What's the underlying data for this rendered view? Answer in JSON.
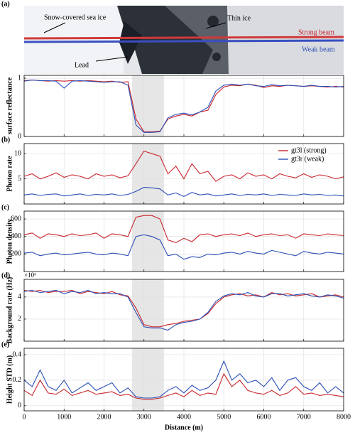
{
  "image": {
    "panel_label": "(a)",
    "labels": [
      "Snow-covered sea ice",
      "Thin ice",
      "Lead",
      "Strong beam",
      "Weak beam"
    ]
  },
  "chart_data": [
    {
      "type": "line",
      "panel_label": "",
      "y_label": "surface reflectance",
      "x": [
        0,
        200,
        400,
        600,
        800,
        1000,
        1200,
        1400,
        1600,
        1800,
        2000,
        2200,
        2400,
        2600,
        2800,
        3000,
        3200,
        3400,
        3600,
        3800,
        4000,
        4200,
        4400,
        4600,
        4800,
        5000,
        5200,
        5400,
        5600,
        5800,
        6000,
        6200,
        6400,
        6600,
        6800,
        7000,
        7200,
        7400,
        7600,
        7800,
        8000
      ],
      "series": [
        {
          "name": "gt3l (strong)",
          "color": "#c8252c",
          "values": [
            0.96,
            0.97,
            0.96,
            0.95,
            0.96,
            0.95,
            0.96,
            0.95,
            0.96,
            0.95,
            0.94,
            0.95,
            0.93,
            0.94,
            0.3,
            0.08,
            0.08,
            0.09,
            0.3,
            0.35,
            0.38,
            0.35,
            0.42,
            0.45,
            0.72,
            0.85,
            0.88,
            0.87,
            0.9,
            0.88,
            0.84,
            0.87,
            0.86,
            0.88,
            0.87,
            0.86,
            0.87,
            0.86,
            0.85,
            0.86,
            0.85
          ]
        },
        {
          "name": "gt3r (weak)",
          "color": "#2a4fb5",
          "values": [
            0.95,
            0.97,
            0.96,
            0.96,
            0.95,
            0.83,
            0.95,
            0.96,
            0.95,
            0.94,
            0.93,
            0.94,
            0.94,
            0.88,
            0.2,
            0.07,
            0.07,
            0.08,
            0.32,
            0.38,
            0.4,
            0.37,
            0.42,
            0.5,
            0.78,
            0.88,
            0.9,
            0.88,
            0.9,
            0.87,
            0.86,
            0.89,
            0.87,
            0.88,
            0.87,
            0.86,
            0.88,
            0.86,
            0.86,
            0.85,
            0.86
          ]
        }
      ],
      "xlim": [
        0,
        8000
      ],
      "xticks": [
        0,
        1000,
        2000,
        3000,
        4000,
        5000,
        6000,
        7000,
        8000
      ],
      "ylim": [
        0,
        1.05
      ],
      "yticks": [
        0,
        1
      ],
      "shade": [
        2700,
        3500
      ],
      "grid": true
    },
    {
      "type": "line",
      "panel_label": "(b)",
      "y_label": "Photon rate",
      "x": [
        0,
        200,
        400,
        600,
        800,
        1000,
        1200,
        1400,
        1600,
        1800,
        2000,
        2200,
        2400,
        2600,
        2800,
        3000,
        3200,
        3400,
        3600,
        3800,
        4000,
        4200,
        4400,
        4600,
        4800,
        5000,
        5200,
        5400,
        5600,
        5800,
        6000,
        6200,
        6400,
        6600,
        6800,
        7000,
        7200,
        7400,
        7600,
        7800,
        8000
      ],
      "series": [
        {
          "name": "gt3l (strong)",
          "color": "#c8252c",
          "values": [
            5.5,
            6,
            5,
            5.5,
            6.2,
            5.3,
            5.8,
            5.5,
            5,
            6,
            5.5,
            5.8,
            5.2,
            5.6,
            8,
            10.5,
            10,
            9.5,
            6,
            7.5,
            5,
            8,
            6,
            6.5,
            4.5,
            5.5,
            5.8,
            5,
            6.2,
            5.5,
            5.8,
            5,
            6,
            5.5,
            5.2,
            6,
            5.3,
            5.8,
            5.5,
            5,
            5.4
          ]
        },
        {
          "name": "gt3r (weak)",
          "color": "#2a4fb5",
          "values": [
            1.8,
            2,
            1.7,
            1.9,
            2,
            1.6,
            1.8,
            2,
            1.7,
            1.9,
            1.8,
            2,
            1.7,
            1.9,
            2.5,
            3.3,
            3.2,
            3,
            1.8,
            2.2,
            1.5,
            2.3,
            1.8,
            2,
            1.6,
            1.8,
            2,
            1.7,
            1.9,
            1.8,
            2,
            1.7,
            1.9,
            1.8,
            1.7,
            2,
            1.8,
            1.9,
            1.7,
            1.8,
            1.6
          ]
        }
      ],
      "xlim": [
        0,
        8000
      ],
      "xticks": [
        0,
        1000,
        2000,
        3000,
        4000,
        5000,
        6000,
        7000,
        8000
      ],
      "ylim": [
        0,
        12
      ],
      "yticks": [
        5,
        10
      ],
      "shade": [
        2700,
        3500
      ],
      "grid": true,
      "legend": "upper right"
    },
    {
      "type": "line",
      "panel_label": "(c)",
      "y_label": "Photon density",
      "x": [
        0,
        200,
        400,
        600,
        800,
        1000,
        1200,
        1400,
        1600,
        1800,
        2000,
        2200,
        2400,
        2600,
        2800,
        3000,
        3200,
        3400,
        3600,
        3800,
        4000,
        4200,
        4400,
        4600,
        4800,
        5000,
        5200,
        5400,
        5600,
        5800,
        6000,
        6200,
        6400,
        6600,
        6800,
        7000,
        7200,
        7400,
        7600,
        7800,
        8000
      ],
      "series": [
        {
          "name": "gt3l (strong)",
          "color": "#c8252c",
          "values": [
            420,
            440,
            380,
            430,
            420,
            400,
            430,
            410,
            420,
            440,
            380,
            430,
            420,
            400,
            620,
            640,
            640,
            600,
            360,
            330,
            380,
            340,
            420,
            430,
            400,
            420,
            430,
            410,
            440,
            400,
            420,
            430,
            410,
            420,
            380,
            430,
            420,
            410,
            430,
            420,
            410
          ]
        },
        {
          "name": "gt3r (weak)",
          "color": "#2a4fb5",
          "values": [
            210,
            220,
            180,
            200,
            210,
            190,
            200,
            210,
            220,
            200,
            190,
            210,
            200,
            180,
            400,
            420,
            400,
            360,
            180,
            200,
            140,
            170,
            160,
            200,
            190,
            210,
            220,
            200,
            230,
            210,
            200,
            240,
            220,
            200,
            180,
            230,
            210,
            200,
            220,
            210,
            200
          ]
        }
      ],
      "xlim": [
        0,
        8000
      ],
      "xticks": [
        0,
        1000,
        2000,
        3000,
        4000,
        5000,
        6000,
        7000,
        8000
      ],
      "ylim": [
        0,
        690
      ],
      "yticks": [
        200,
        400,
        600
      ],
      "shade": [
        2700,
        3500
      ],
      "grid": true
    },
    {
      "type": "line",
      "panel_label": "(d)",
      "y_label": "Background rate (Hz)",
      "y_exponent": "×10⁶",
      "x": [
        0,
        200,
        400,
        600,
        800,
        1000,
        1200,
        1400,
        1600,
        1800,
        2000,
        2200,
        2400,
        2600,
        2800,
        3000,
        3200,
        3400,
        3600,
        3800,
        4000,
        4200,
        4400,
        4600,
        4800,
        5000,
        5200,
        5400,
        5600,
        5800,
        6000,
        6200,
        6400,
        6600,
        6800,
        7000,
        7200,
        7400,
        7600,
        7800,
        8000
      ],
      "series": [
        {
          "name": "gt3l (strong)",
          "color": "#c8252c",
          "values": [
            4.6,
            4.5,
            4.6,
            4.4,
            4.5,
            4.5,
            4.6,
            4.3,
            4.5,
            4.4,
            4.3,
            4.5,
            4.2,
            4.1,
            3,
            1.5,
            1.3,
            1.3,
            1.5,
            1.6,
            1.8,
            1.9,
            2,
            2.5,
            3.4,
            4,
            4.2,
            4.3,
            4.1,
            4.2,
            4,
            4.4,
            4.2,
            4.3,
            4.1,
            4.2,
            4.3,
            4,
            4.1,
            4.2,
            4
          ]
        },
        {
          "name": "gt3r (weak)",
          "color": "#2a4fb5",
          "values": [
            4.5,
            4.6,
            4.4,
            4.5,
            4.6,
            4.3,
            4.5,
            4.4,
            4.6,
            4.3,
            4.4,
            4.3,
            4.3,
            4,
            2.6,
            1.3,
            1.2,
            1.2,
            1,
            1.5,
            1.7,
            1.8,
            2,
            2.6,
            3.6,
            4.1,
            4.3,
            4.2,
            4.4,
            4.1,
            4,
            4.3,
            4.3,
            4.1,
            4.2,
            4.3,
            4.1,
            4,
            4.2,
            4.1,
            3.9
          ]
        }
      ],
      "xlim": [
        0,
        8000
      ],
      "xticks": [
        0,
        1000,
        2000,
        3000,
        4000,
        5000,
        6000,
        7000,
        8000
      ],
      "ylim": [
        0,
        5.6
      ],
      "yticks": [
        2,
        4
      ],
      "shade": [
        2700,
        3500
      ],
      "grid": true
    },
    {
      "type": "line",
      "panel_label": "(e)",
      "y_label": "Height STD (m)",
      "x_label": "Distance (m)",
      "x": [
        0,
        200,
        400,
        600,
        800,
        1000,
        1200,
        1400,
        1600,
        1800,
        2000,
        2200,
        2400,
        2600,
        2800,
        3000,
        3200,
        3400,
        3600,
        3800,
        4000,
        4200,
        4400,
        4600,
        4800,
        5000,
        5200,
        5400,
        5600,
        5800,
        6000,
        6200,
        6400,
        6600,
        6800,
        7000,
        7200,
        7400,
        7600,
        7800,
        8000
      ],
      "series": [
        {
          "name": "gt3l (strong)",
          "color": "#c8252c",
          "values": [
            0.12,
            0.08,
            0.2,
            0.1,
            0.09,
            0.13,
            0.08,
            0.1,
            0.12,
            0.09,
            0.1,
            0.11,
            0.08,
            0.09,
            0.06,
            0.05,
            0.05,
            0.06,
            0.08,
            0.1,
            0.07,
            0.12,
            0.08,
            0.1,
            0.09,
            0.25,
            0.15,
            0.2,
            0.12,
            0.1,
            0.09,
            0.12,
            0.08,
            0.1,
            0.15,
            0.09,
            0.1,
            0.08,
            0.09,
            0.08,
            0.07
          ]
        },
        {
          "name": "gt3r (weak)",
          "color": "#2a4fb5",
          "values": [
            0.2,
            0.15,
            0.28,
            0.15,
            0.12,
            0.2,
            0.1,
            0.14,
            0.18,
            0.12,
            0.15,
            0.18,
            0.1,
            0.14,
            0.07,
            0.06,
            0.06,
            0.07,
            0.12,
            0.15,
            0.1,
            0.16,
            0.12,
            0.14,
            0.2,
            0.35,
            0.2,
            0.25,
            0.18,
            0.2,
            0.15,
            0.22,
            0.12,
            0.2,
            0.22,
            0.15,
            0.12,
            0.18,
            0.1,
            0.15,
            0.1
          ]
        }
      ],
      "xlim": [
        0,
        8000
      ],
      "xticks": [
        0,
        1000,
        2000,
        3000,
        4000,
        5000,
        6000,
        7000,
        8000
      ],
      "ylim": [
        -0.04,
        0.45
      ],
      "yticks": [
        0,
        0.2,
        0.4
      ],
      "shade": [
        2700,
        3500
      ],
      "grid": true
    }
  ]
}
